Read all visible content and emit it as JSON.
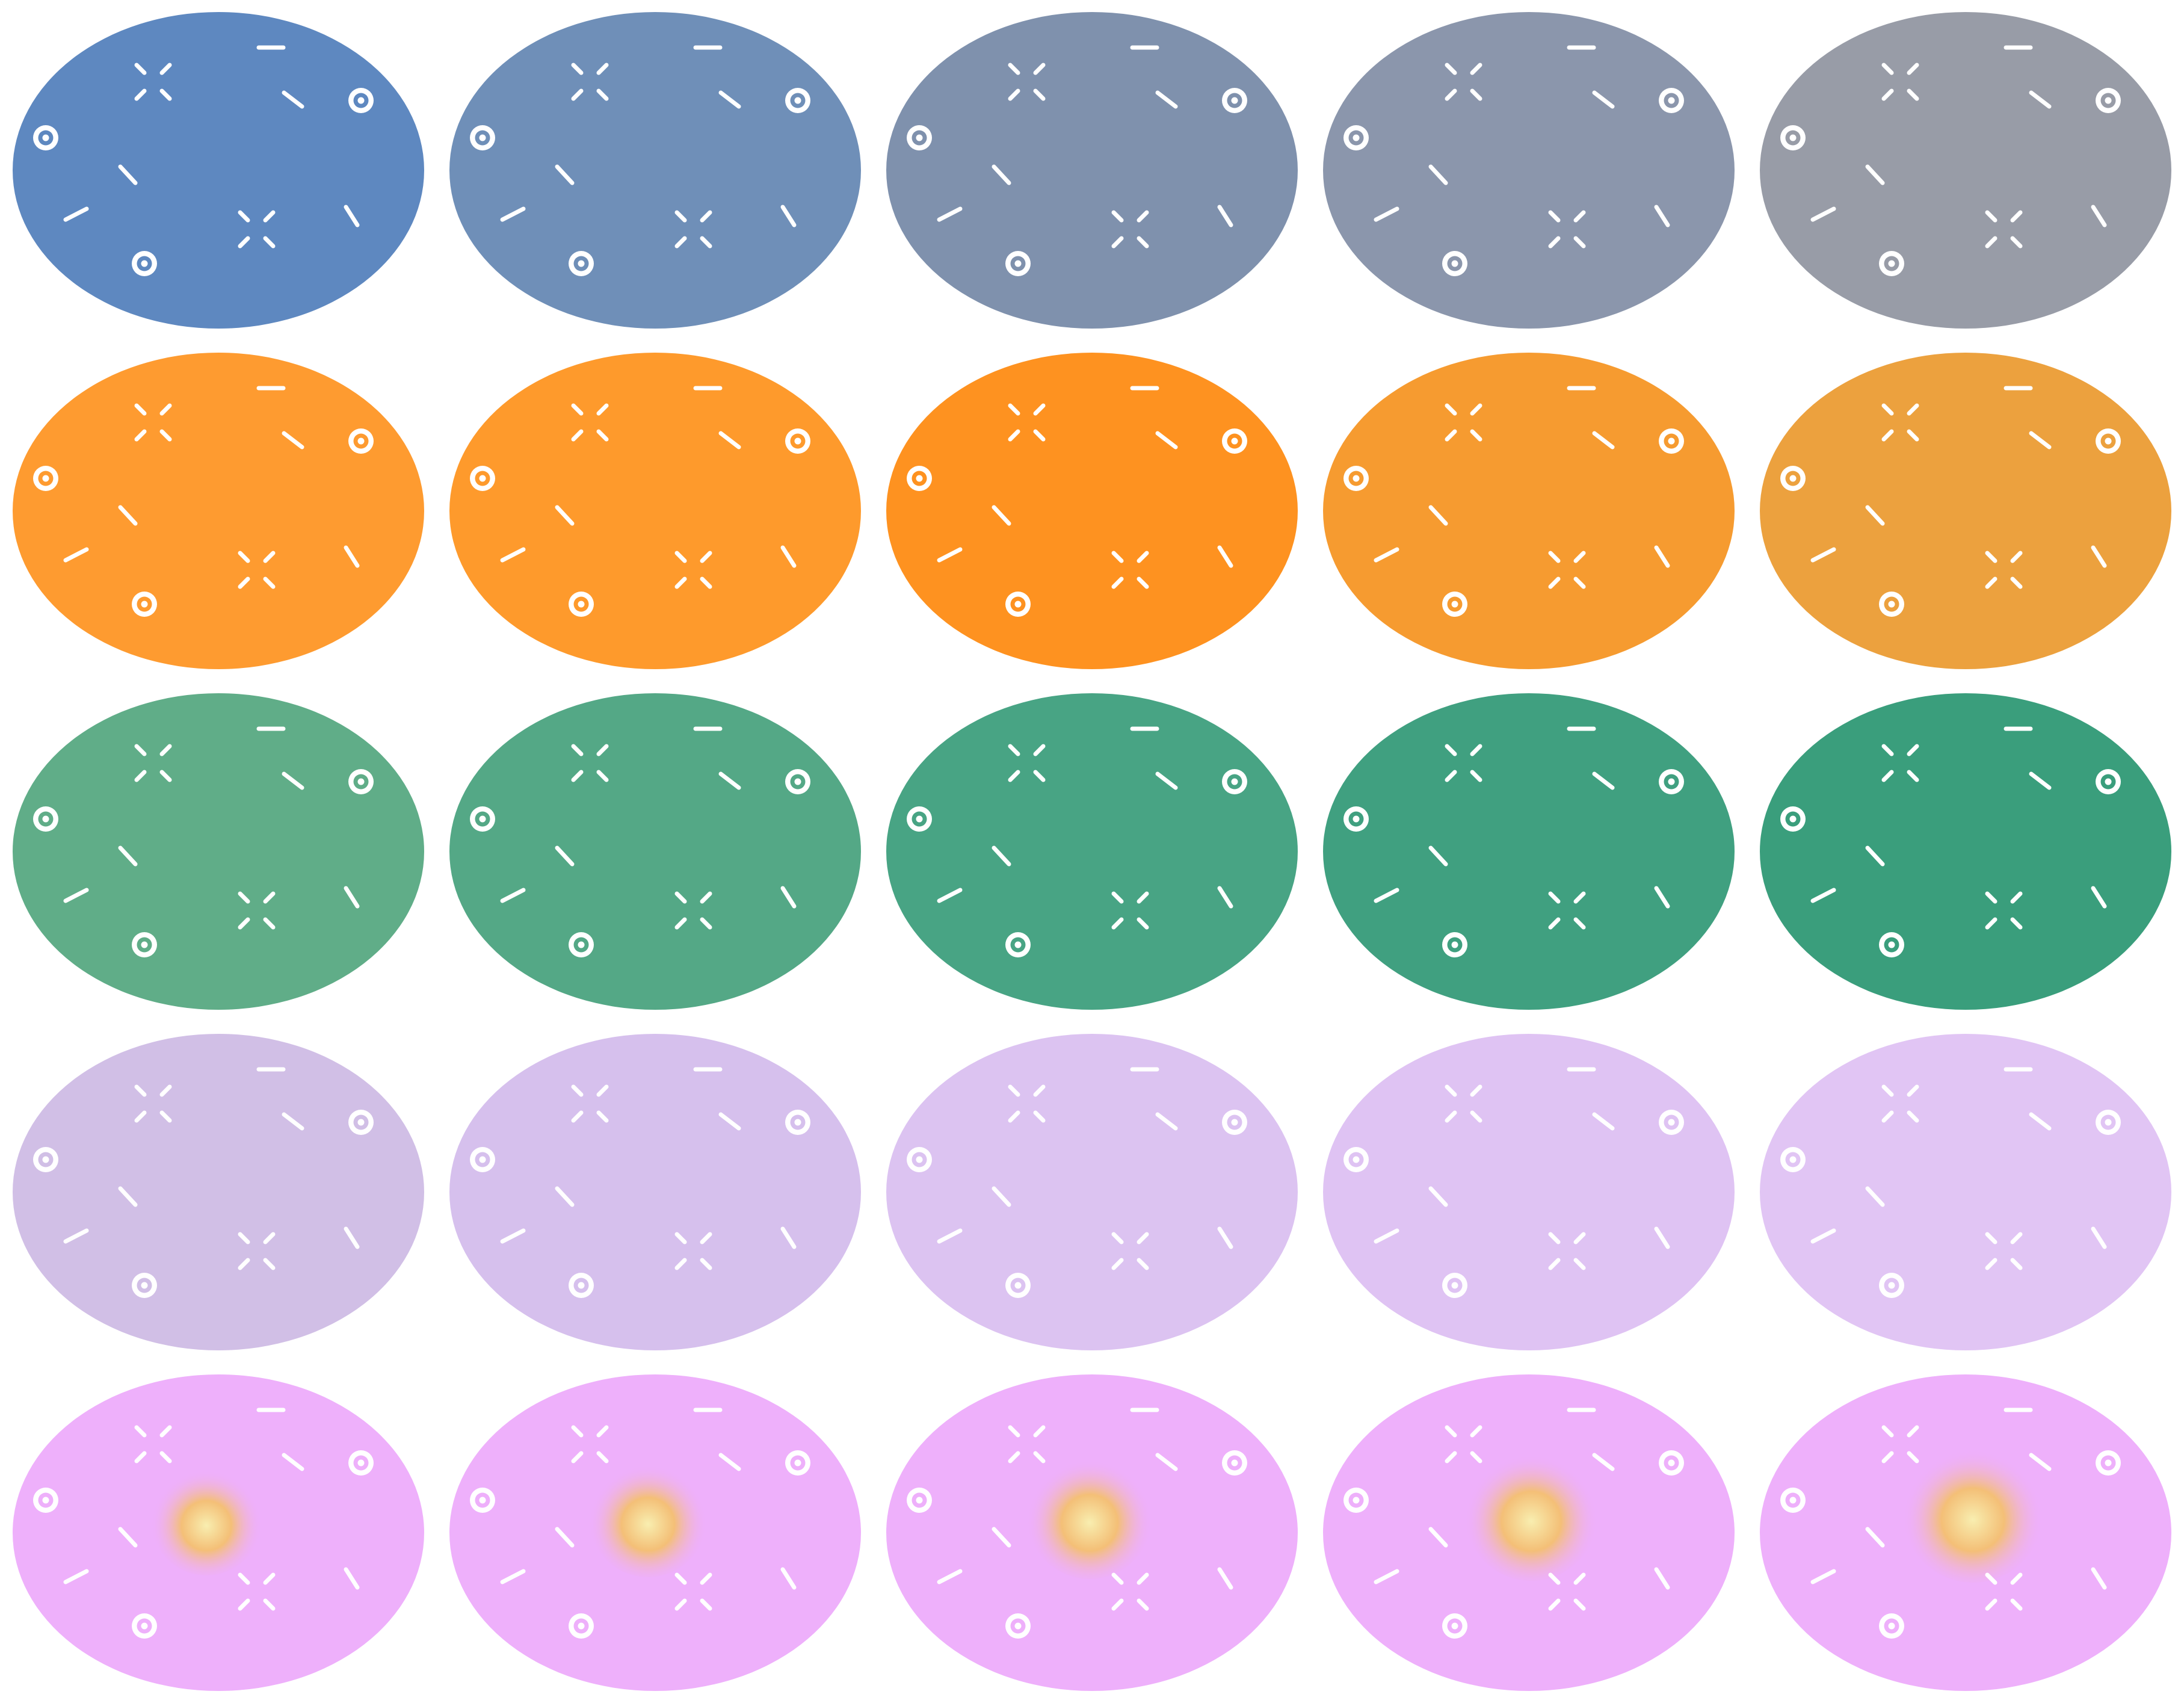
{
  "rows": [
    {
      "name": "blue-gray",
      "glow": false,
      "colors": [
        "#5e88c0",
        "#6f8fb8",
        "#7f91ad",
        "#8b96ac",
        "#989ca7"
      ]
    },
    {
      "name": "orange",
      "glow": false,
      "colors": [
        "#fe9b30",
        "#fe9a2c",
        "#fe9220",
        "#f69b30",
        "#eca13e"
      ]
    },
    {
      "name": "green",
      "glow": false,
      "colors": [
        "#60ad88",
        "#54a886",
        "#48a484",
        "#40a080",
        "#3a9e7c"
      ]
    },
    {
      "name": "lavender",
      "glow": false,
      "colors": [
        "#d1bfe6",
        "#d6c0ed",
        "#dcc3f1",
        "#dfc3f3",
        "#e1c5f4"
      ]
    },
    {
      "name": "pink-with-glow",
      "glow": true,
      "colors": [
        "#eeb0fb",
        "#eeb0fb",
        "#eeb0fb",
        "#eeb0fb",
        "#eeb0fb"
      ]
    }
  ],
  "marks": {
    "stroke_color": "#ffffff",
    "icon_set": [
      "ring-icon",
      "dash-icon",
      "x-cluster-icon"
    ]
  },
  "glow_colors": {
    "center": "#f8eeb0",
    "mid": "#f4c070",
    "edge": "#eeb0fb"
  }
}
